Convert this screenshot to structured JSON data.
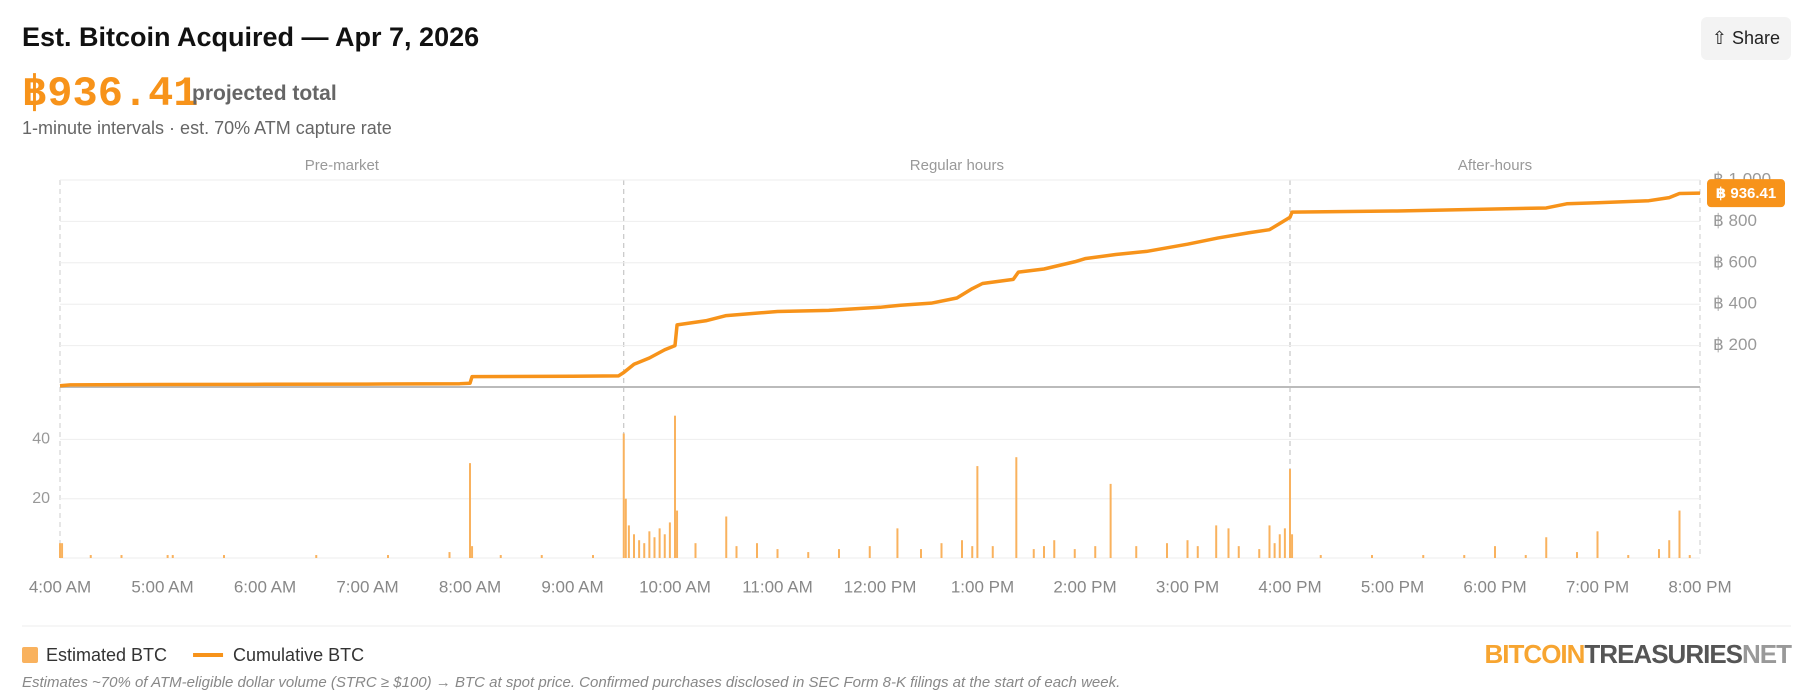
{
  "header": {
    "title": "Est. Bitcoin Acquired — Apr 7, 2026",
    "total": "฿936.41",
    "total_caption": "projected total",
    "subtitle": "1-minute intervals · est. 70% ATM capture rate",
    "share": "Share"
  },
  "sessions": [
    {
      "label": "Pre-market",
      "start": 4,
      "end": 9.5
    },
    {
      "label": "Regular hours",
      "start": 9.5,
      "end": 16
    },
    {
      "label": "After-hours",
      "start": 16,
      "end": 20
    }
  ],
  "chart_data": [
    {
      "type": "line",
      "xlim": [
        4,
        20
      ],
      "ylim": [
        0,
        1000
      ],
      "yticks": [
        {
          "value": 200,
          "label": "฿ 200"
        },
        {
          "value": 400,
          "label": "฿ 400"
        },
        {
          "value": 600,
          "label": "฿ 600"
        },
        {
          "value": 800,
          "label": "฿ 800"
        },
        {
          "value": 1000,
          "label": "฿ 1,000"
        }
      ],
      "grid": true,
      "series": [
        {
          "name": "Cumulative BTC",
          "color": "#f7931a",
          "x": [
            4.0,
            4.1,
            5.0,
            6.0,
            7.0,
            7.9,
            8.0,
            8.02,
            9.0,
            9.45,
            9.5,
            9.6,
            9.75,
            9.9,
            10.0,
            10.02,
            10.3,
            10.5,
            11.0,
            11.5,
            12.0,
            12.2,
            12.5,
            12.75,
            12.9,
            13.0,
            13.3,
            13.35,
            13.6,
            13.9,
            14.0,
            14.3,
            14.6,
            15.0,
            15.3,
            15.6,
            15.8,
            15.9,
            16.0,
            16.02,
            17.0,
            18.0,
            18.5,
            18.7,
            19.0,
            19.5,
            19.7,
            19.8,
            20.0
          ],
          "values": [
            6,
            10,
            12,
            13,
            14,
            16,
            18,
            50,
            52,
            54,
            70,
            110,
            140,
            180,
            200,
            300,
            320,
            345,
            365,
            370,
            385,
            395,
            405,
            430,
            475,
            500,
            520,
            555,
            570,
            605,
            620,
            640,
            655,
            690,
            720,
            745,
            760,
            790,
            820,
            845,
            850,
            860,
            865,
            885,
            890,
            900,
            915,
            935,
            936.41
          ],
          "value_labels": [
            null,
            null,
            null,
            null,
            null,
            null,
            null,
            null,
            null,
            null,
            null,
            null,
            null,
            null,
            null,
            null,
            null,
            null,
            null,
            null,
            null,
            null,
            null,
            null,
            null,
            null,
            null,
            null,
            null,
            null,
            null,
            null,
            null,
            null,
            null,
            null,
            null,
            null,
            null,
            null,
            null,
            null,
            null,
            null,
            null,
            null,
            null,
            null,
            "฿ 936.41"
          ]
        }
      ]
    },
    {
      "type": "bar",
      "xlim": [
        4,
        20
      ],
      "ylim": [
        0,
        57
      ],
      "yticks": [
        20,
        40
      ],
      "grid": true,
      "xticks": [
        {
          "value": 4,
          "label": "4:00 AM"
        },
        {
          "value": 5,
          "label": "5:00 AM"
        },
        {
          "value": 6,
          "label": "6:00 AM"
        },
        {
          "value": 7,
          "label": "7:00 AM"
        },
        {
          "value": 8,
          "label": "8:00 AM"
        },
        {
          "value": 9,
          "label": "9:00 AM"
        },
        {
          "value": 10,
          "label": "10:00 AM"
        },
        {
          "value": 11,
          "label": "11:00 AM"
        },
        {
          "value": 12,
          "label": "12:00 PM"
        },
        {
          "value": 13,
          "label": "1:00 PM"
        },
        {
          "value": 14,
          "label": "2:00 PM"
        },
        {
          "value": 15,
          "label": "3:00 PM"
        },
        {
          "value": 16,
          "label": "4:00 PM"
        },
        {
          "value": 17,
          "label": "5:00 PM"
        },
        {
          "value": 18,
          "label": "6:00 PM"
        },
        {
          "value": 19,
          "label": "7:00 PM"
        },
        {
          "value": 20,
          "label": "8:00 PM"
        }
      ],
      "series": [
        {
          "name": "Estimated BTC",
          "color": "#f9b25e",
          "x": [
            4.0,
            4.02,
            4.3,
            4.6,
            5.05,
            5.1,
            5.6,
            6.5,
            7.2,
            7.8,
            8.0,
            8.02,
            8.3,
            8.7,
            9.2,
            9.5,
            9.52,
            9.55,
            9.6,
            9.65,
            9.7,
            9.75,
            9.8,
            9.85,
            9.9,
            9.95,
            10.0,
            10.02,
            10.2,
            10.5,
            10.6,
            10.8,
            11.0,
            11.3,
            11.6,
            11.9,
            12.17,
            12.4,
            12.6,
            12.8,
            12.9,
            12.95,
            13.1,
            13.33,
            13.5,
            13.6,
            13.7,
            13.9,
            14.1,
            14.25,
            14.5,
            14.8,
            15.0,
            15.1,
            15.28,
            15.4,
            15.5,
            15.7,
            15.8,
            15.85,
            15.9,
            15.95,
            16.0,
            16.02,
            16.3,
            16.8,
            17.3,
            17.7,
            18.0,
            18.3,
            18.5,
            18.8,
            19.0,
            19.3,
            19.6,
            19.7,
            19.8,
            19.9
          ],
          "values": [
            5,
            5,
            1,
            1,
            1,
            1,
            1,
            1,
            1,
            2,
            32,
            4,
            1,
            1,
            1,
            42,
            20,
            11,
            8,
            6,
            5,
            9,
            7,
            10,
            8,
            12,
            48,
            16,
            5,
            14,
            4,
            5,
            3,
            2,
            3,
            4,
            10,
            3,
            5,
            6,
            4,
            31,
            4,
            34,
            3,
            4,
            6,
            3,
            4,
            25,
            4,
            5,
            6,
            4,
            11,
            10,
            4,
            3,
            11,
            5,
            8,
            10,
            30,
            8,
            1,
            1,
            1,
            1,
            4,
            1,
            7,
            2,
            9,
            1,
            3,
            6,
            16,
            1
          ]
        }
      ]
    }
  ],
  "logo": {
    "part1": "BITCOIN",
    "part2": "TREASURIES",
    "part3": "NET"
  },
  "footnote": "Estimates ~70% of ATM-eligible dollar volume (STRC ≥ $100) → BTC at spot price. Confirmed purchases disclosed in SEC Form 8-K filings at the start of each week."
}
